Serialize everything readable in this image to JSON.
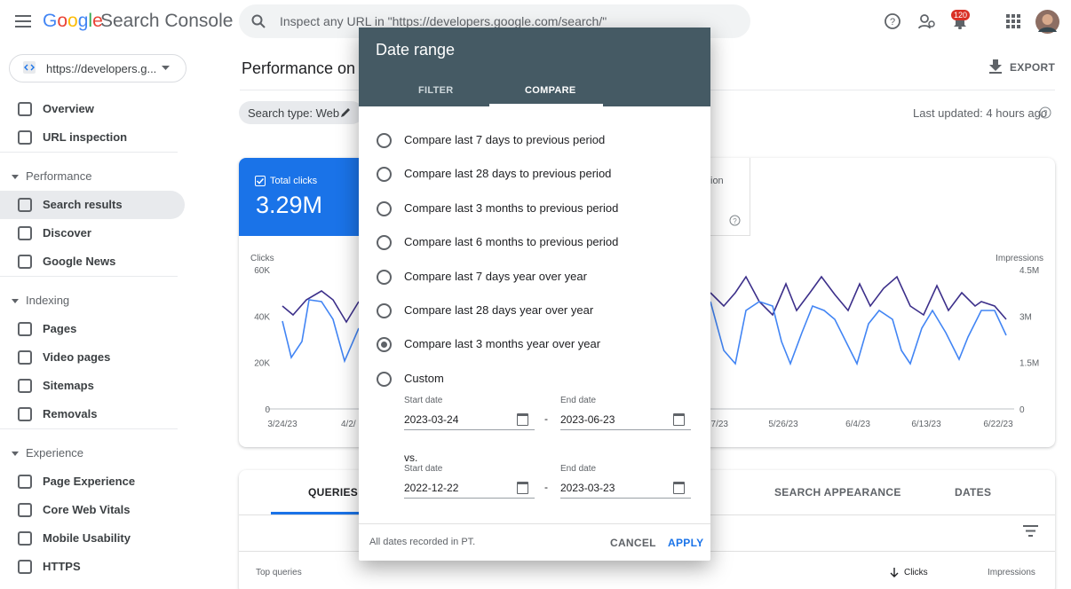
{
  "header": {
    "logo": "Google",
    "product": "Search Console",
    "search_placeholder": "Inspect any URL in \"https://developers.google.com/search/\"",
    "notification_count": "120"
  },
  "sidebar": {
    "property": "https://developers.g...",
    "items": [
      "Overview",
      "URL inspection"
    ],
    "sections": [
      {
        "title": "Performance",
        "items": [
          "Search results",
          "Discover",
          "Google News"
        ]
      },
      {
        "title": "Indexing",
        "items": [
          "Pages",
          "Video pages",
          "Sitemaps",
          "Removals"
        ]
      },
      {
        "title": "Experience",
        "items": [
          "Page Experience",
          "Core Web Vitals",
          "Mobile Usability",
          "HTTPS"
        ]
      }
    ]
  },
  "main": {
    "title": "Performance on S",
    "export": "EXPORT",
    "filter_chip": "Search type: Web",
    "last_updated": "Last updated: 4 hours ago",
    "metric": {
      "label": "Total clicks",
      "value": "3.29M"
    },
    "metric_partial": "ion",
    "chart": {
      "left_axis": "Clicks",
      "right_axis": "Impressions",
      "left_ticks": [
        "60K",
        "40K",
        "20K",
        "0"
      ],
      "right_ticks": [
        "4.5M",
        "3M",
        "1.5M",
        "0"
      ],
      "x_labels": [
        "3/24/23",
        "4/2/",
        "7/23",
        "5/26/23",
        "6/4/23",
        "6/13/23",
        "6/22/23"
      ]
    },
    "tabs": [
      "QUERIES",
      "SEARCH APPEARANCE",
      "DATES"
    ],
    "table_headers": [
      "Top queries",
      "Clicks",
      "Impressions"
    ]
  },
  "dialog": {
    "title": "Date range",
    "tabs": [
      "FILTER",
      "COMPARE"
    ],
    "options": [
      "Compare last 7 days to previous period",
      "Compare last 28 days to previous period",
      "Compare last 3 months to previous period",
      "Compare last 6 months to previous period",
      "Compare last 7 days year over year",
      "Compare last 28 days year over year",
      "Compare last 3 months year over year",
      "Custom"
    ],
    "selected_option": 6,
    "ranges": [
      {
        "start_label": "Start date",
        "start": "2023-03-24",
        "end_label": "End date",
        "end": "2023-06-23"
      },
      {
        "start_label": "Start date",
        "start": "2022-12-22",
        "end_label": "End date",
        "end": "2023-03-23"
      }
    ],
    "vs": "vs.",
    "separator": "-",
    "note": "All dates recorded in PT.",
    "cancel": "CANCEL",
    "apply": "APPLY"
  }
}
